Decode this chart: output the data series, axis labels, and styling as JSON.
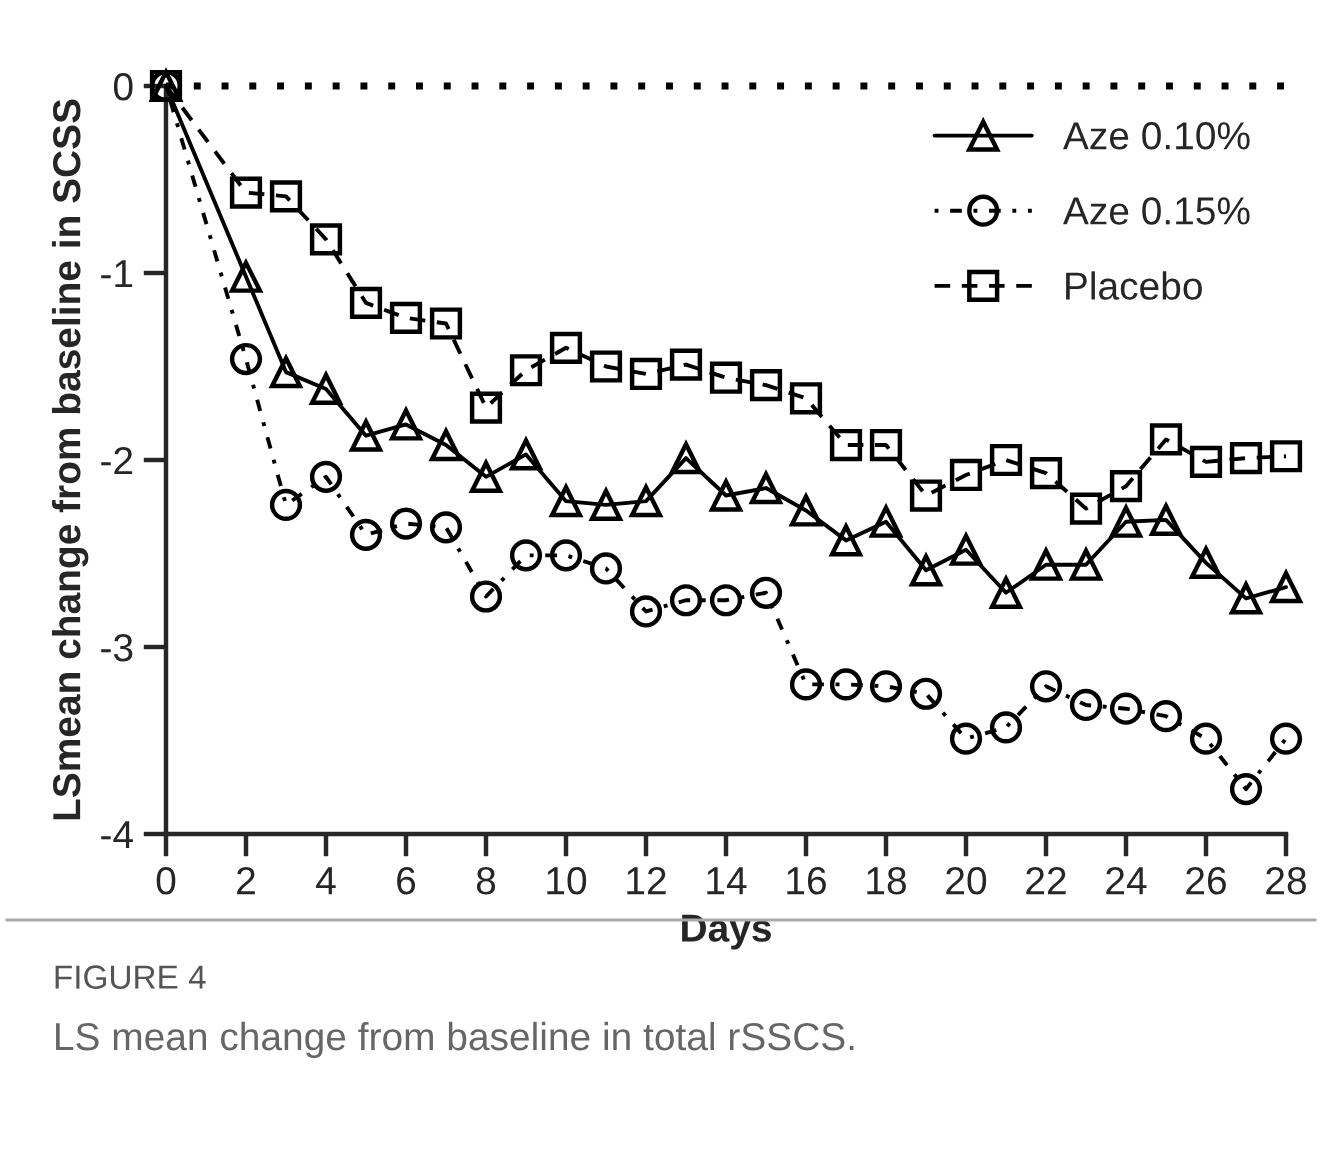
{
  "chart_data": {
    "type": "line",
    "xlabel": "Days",
    "ylabel": "LSmean change from baseline in SCSS",
    "x": [
      0,
      2,
      3,
      4,
      5,
      6,
      7,
      8,
      9,
      10,
      11,
      12,
      13,
      14,
      15,
      16,
      17,
      18,
      19,
      20,
      21,
      22,
      23,
      24,
      25,
      26,
      27,
      28
    ],
    "series": [
      {
        "name": "Aze 0.10%",
        "color": "#000000",
        "marker": "triangle",
        "line_style": "solid",
        "values": [
          0,
          -1.02,
          -1.53,
          -1.62,
          -1.87,
          -1.81,
          -1.92,
          -2.09,
          -1.97,
          -2.22,
          -2.24,
          -2.22,
          -1.99,
          -2.19,
          -2.15,
          -2.27,
          -2.43,
          -2.33,
          -2.59,
          -2.48,
          -2.71,
          -2.56,
          -2.56,
          -2.33,
          -2.32,
          -2.55,
          -2.74,
          -2.68
        ]
      },
      {
        "name": "Aze 0.15%",
        "color": "#000000",
        "marker": "circle",
        "line_style": "dashdot",
        "values": [
          0,
          -1.46,
          -2.24,
          -2.09,
          -2.4,
          -2.34,
          -2.36,
          -2.73,
          -2.51,
          -2.51,
          -2.58,
          -2.81,
          -2.75,
          -2.75,
          -2.71,
          -3.2,
          -3.2,
          -3.21,
          -3.25,
          -3.49,
          -3.43,
          -3.21,
          -3.31,
          -3.33,
          -3.37,
          -3.49,
          -3.76,
          -3.49
        ]
      },
      {
        "name": "Placebo",
        "color": "#000000",
        "marker": "square",
        "line_style": "dashed",
        "values": [
          0,
          -0.57,
          -0.59,
          -0.82,
          -1.16,
          -1.24,
          -1.27,
          -1.72,
          -1.52,
          -1.4,
          -1.5,
          -1.54,
          -1.49,
          -1.56,
          -1.6,
          -1.67,
          -1.92,
          -1.92,
          -2.19,
          -2.08,
          -2.0,
          -2.07,
          -2.26,
          -2.14,
          -1.89,
          -2.01,
          -1.99,
          -1.98
        ]
      }
    ],
    "xlim": [
      0,
      28
    ],
    "xticks": [
      0,
      2,
      4,
      6,
      8,
      10,
      12,
      14,
      16,
      18,
      20,
      22,
      24,
      26,
      28
    ],
    "ylim": [
      -4,
      0
    ],
    "yticks": [
      -4,
      -3,
      -2,
      -1,
      0
    ],
    "ref_lines": [
      {
        "axis": "y",
        "value": 0,
        "line_style": "dotted",
        "color": "#000000"
      }
    ],
    "grid": false,
    "legend": "top right",
    "annotations": [
      "FIGURE 4",
      "LS mean change from baseline in total rSSCS."
    ]
  }
}
